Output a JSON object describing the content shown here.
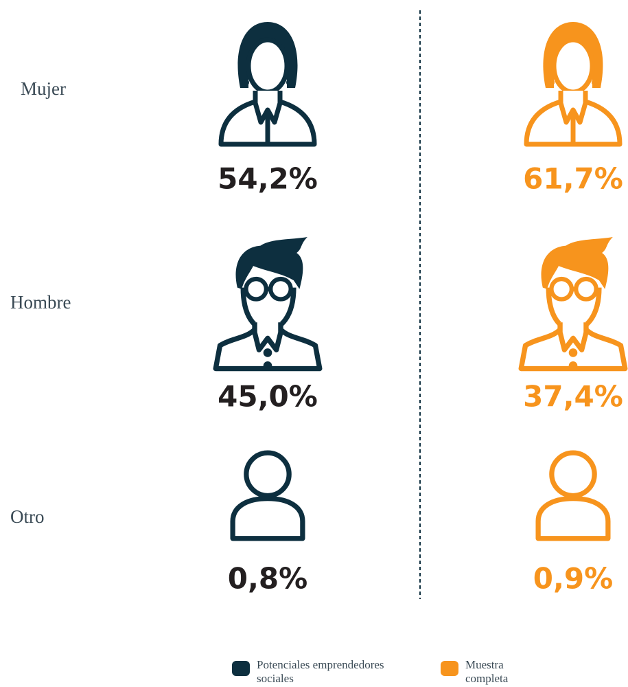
{
  "chart_data": {
    "type": "pictogram",
    "categories": [
      "Mujer",
      "Hombre",
      "Otro"
    ],
    "series": [
      {
        "name": "Potenciales emprendedores sociales",
        "color": "#0d2f3f",
        "values": [
          54.2,
          45.0,
          0.8
        ],
        "value_labels": [
          "54,2%",
          "45,0%",
          "0,8%"
        ]
      },
      {
        "name": "Muestra completa",
        "color": "#f7941d",
        "values": [
          61.7,
          37.4,
          0.9
        ],
        "value_labels": [
          "61,7%",
          "37,4%",
          "0,9%"
        ]
      }
    ]
  }
}
